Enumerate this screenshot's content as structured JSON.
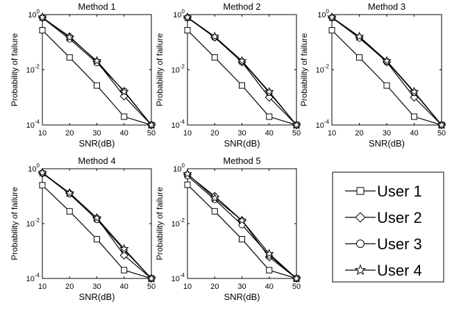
{
  "series_style": {
    "User 1": {
      "marker": "square",
      "color": "#000000"
    },
    "User 2": {
      "marker": "diamond",
      "color": "#000000"
    },
    "User 3": {
      "marker": "circle",
      "color": "#000000"
    },
    "User 4": {
      "marker": "star",
      "color": "#000000"
    }
  },
  "legend": {
    "entries": [
      "User 1",
      "User 2",
      "User 3",
      "User 4"
    ],
    "placement": "bottom-right"
  },
  "chart_data": [
    {
      "type": "line",
      "title": "Method 1",
      "xlabel": "SNR(dB)",
      "ylabel": "Probability of failure",
      "yscale": "log",
      "xlim": [
        10,
        50
      ],
      "ylim": [
        0.0001,
        1
      ],
      "xticks": [
        "10",
        "20",
        "30",
        "40",
        "50"
      ],
      "yticks": [
        {
          "value": 1,
          "exp": "0"
        },
        {
          "value": 0.01,
          "exp": "-2"
        },
        {
          "value": 0.0001,
          "exp": "-4"
        }
      ],
      "grid": false,
      "x": [
        10,
        20,
        30,
        40,
        50
      ],
      "series": [
        {
          "name": "User 1",
          "values": [
            0.27,
            0.028,
            0.0027,
            0.0002,
            0.0001
          ]
        },
        {
          "name": "User 2",
          "values": [
            0.77,
            0.16,
            0.02,
            0.0011,
            0.0001
          ]
        },
        {
          "name": "User 3",
          "values": [
            0.77,
            0.13,
            0.018,
            0.0017,
            0.0001
          ]
        },
        {
          "name": "User 4",
          "values": [
            0.8,
            0.15,
            0.021,
            0.0016,
            0.0001
          ]
        }
      ]
    },
    {
      "type": "line",
      "title": "Method 2",
      "xlabel": "SNR(dB)",
      "ylabel": "Probability of failure",
      "yscale": "log",
      "xlim": [
        10,
        50
      ],
      "ylim": [
        0.0001,
        1
      ],
      "xticks": [
        "10",
        "20",
        "30",
        "40",
        "50"
      ],
      "yticks": [
        {
          "value": 1,
          "exp": "0"
        },
        {
          "value": 0.01,
          "exp": "-2"
        },
        {
          "value": 0.0001,
          "exp": "-4"
        }
      ],
      "grid": false,
      "x": [
        10,
        20,
        30,
        40,
        50
      ],
      "series": [
        {
          "name": "User 1",
          "values": [
            0.27,
            0.028,
            0.0027,
            0.0002,
            0.0001
          ]
        },
        {
          "name": "User 2",
          "values": [
            0.77,
            0.15,
            0.019,
            0.001,
            0.0001
          ]
        },
        {
          "name": "User 3",
          "values": [
            0.78,
            0.15,
            0.02,
            0.0015,
            0.0001
          ]
        },
        {
          "name": "User 4",
          "values": [
            0.8,
            0.16,
            0.021,
            0.0016,
            0.0001
          ]
        }
      ]
    },
    {
      "type": "line",
      "title": "Method 3",
      "xlabel": "SNR(dB)",
      "ylabel": "Probability of failure",
      "yscale": "log",
      "xlim": [
        10,
        50
      ],
      "ylim": [
        0.0001,
        1
      ],
      "xticks": [
        "10",
        "20",
        "30",
        "40",
        "50"
      ],
      "yticks": [
        {
          "value": 1,
          "exp": "0"
        },
        {
          "value": 0.01,
          "exp": "-2"
        },
        {
          "value": 0.0001,
          "exp": "-4"
        }
      ],
      "grid": false,
      "x": [
        10,
        20,
        30,
        40,
        50
      ],
      "series": [
        {
          "name": "User 1",
          "values": [
            0.27,
            0.028,
            0.0027,
            0.0002,
            0.0001
          ]
        },
        {
          "name": "User 2",
          "values": [
            0.77,
            0.15,
            0.019,
            0.001,
            0.0001
          ]
        },
        {
          "name": "User 3",
          "values": [
            0.78,
            0.14,
            0.02,
            0.0015,
            0.0001
          ]
        },
        {
          "name": "User 4",
          "values": [
            0.8,
            0.16,
            0.021,
            0.0016,
            0.0001
          ]
        }
      ]
    },
    {
      "type": "line",
      "title": "Method 4",
      "xlabel": "SNR(dB)",
      "ylabel": "Probability of failure",
      "yscale": "log",
      "xlim": [
        10,
        50
      ],
      "ylim": [
        0.0001,
        1
      ],
      "xticks": [
        "10",
        "20",
        "30",
        "40",
        "50"
      ],
      "yticks": [
        {
          "value": 1,
          "exp": "0"
        },
        {
          "value": 0.01,
          "exp": "-2"
        },
        {
          "value": 0.0001,
          "exp": "-4"
        }
      ],
      "grid": false,
      "x": [
        10,
        20,
        30,
        40,
        50
      ],
      "series": [
        {
          "name": "User 1",
          "values": [
            0.25,
            0.028,
            0.0027,
            0.0002,
            0.0001
          ]
        },
        {
          "name": "User 2",
          "values": [
            0.68,
            0.13,
            0.016,
            0.0007,
            0.0001
          ]
        },
        {
          "name": "User 3",
          "values": [
            0.7,
            0.12,
            0.014,
            0.0011,
            0.0001
          ]
        },
        {
          "name": "User 4",
          "values": [
            0.72,
            0.13,
            0.016,
            0.0012,
            0.0001
          ]
        }
      ]
    },
    {
      "type": "line",
      "title": "Method 5",
      "xlabel": "SNR(dB)",
      "ylabel": "Probability of failure",
      "yscale": "log",
      "xlim": [
        10,
        50
      ],
      "ylim": [
        0.0001,
        1
      ],
      "xticks": [
        "10",
        "20",
        "30",
        "40",
        "50"
      ],
      "yticks": [
        {
          "value": 1,
          "exp": "0"
        },
        {
          "value": 0.01,
          "exp": "-2"
        },
        {
          "value": 0.0001,
          "exp": "-4"
        }
      ],
      "grid": false,
      "x": [
        10,
        20,
        30,
        40,
        50
      ],
      "series": [
        {
          "name": "User 1",
          "values": [
            0.26,
            0.028,
            0.0027,
            0.0002,
            0.0001
          ]
        },
        {
          "name": "User 2",
          "values": [
            0.62,
            0.1,
            0.013,
            0.0006,
            0.0001
          ]
        },
        {
          "name": "User 3",
          "values": [
            0.55,
            0.075,
            0.009,
            0.0007,
            0.0001
          ]
        },
        {
          "name": "User 4",
          "values": [
            0.65,
            0.085,
            0.013,
            0.0008,
            0.0001
          ]
        }
      ]
    }
  ]
}
